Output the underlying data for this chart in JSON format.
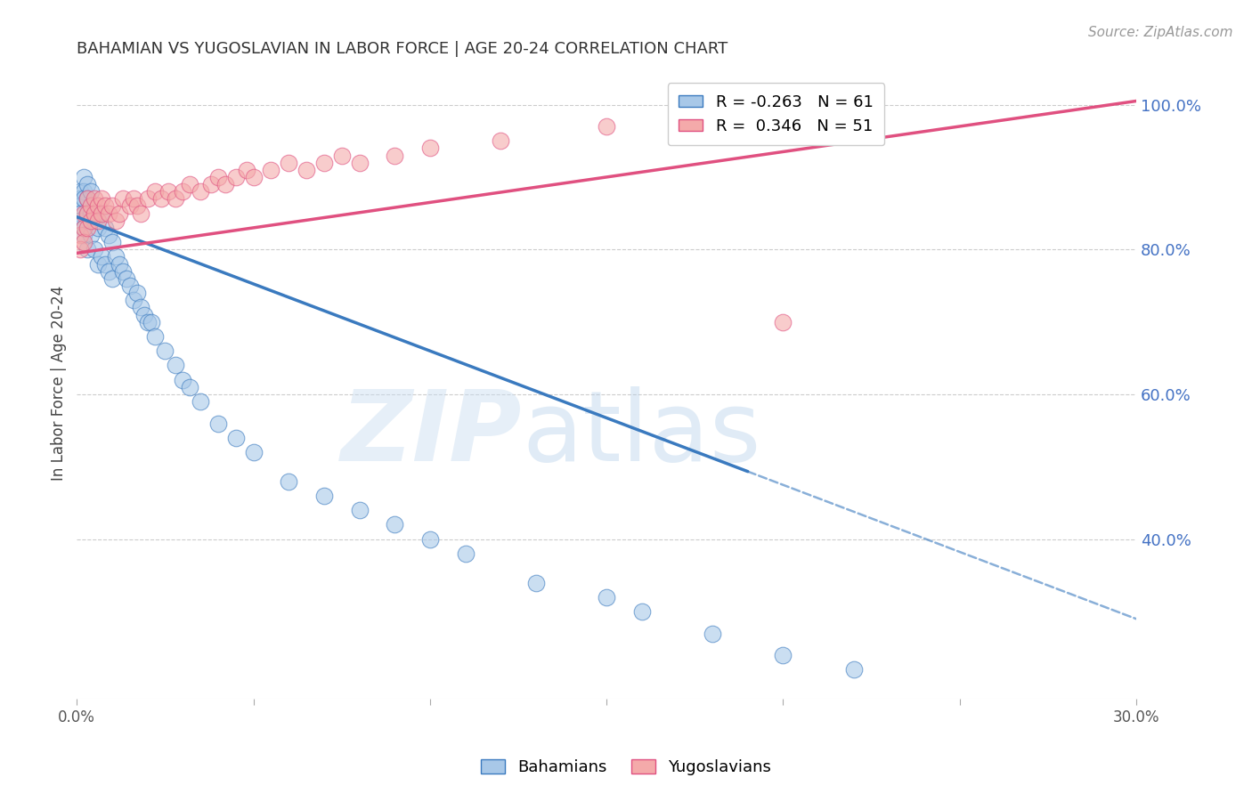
{
  "title": "BAHAMIAN VS YUGOSLAVIAN IN LABOR FORCE | AGE 20-24 CORRELATION CHART",
  "source": "Source: ZipAtlas.com",
  "ylabel": "In Labor Force | Age 20-24",
  "xlim": [
    0.0,
    0.3
  ],
  "ylim": [
    0.18,
    1.05
  ],
  "xticks": [
    0.0,
    0.05,
    0.1,
    0.15,
    0.2,
    0.25,
    0.3
  ],
  "xticklabels": [
    "0.0%",
    "",
    "",
    "",
    "",
    "",
    "30.0%"
  ],
  "yticks_right": [
    0.4,
    0.6,
    0.8,
    1.0
  ],
  "ytick_right_labels": [
    "40.0%",
    "60.0%",
    "80.0%",
    "100.0%"
  ],
  "legend_r_blue": "R = -0.263",
  "legend_n_blue": "N = 61",
  "legend_r_pink": "R =  0.346",
  "legend_n_pink": "N = 51",
  "blue_color": "#a8c8e8",
  "pink_color": "#f4aaaa",
  "trend_blue_color": "#3a7abf",
  "trend_pink_color": "#e05080",
  "blue_line_solid_end": 0.19,
  "blue_trend_x0": 0.0,
  "blue_trend_y0": 0.845,
  "blue_trend_x1": 0.3,
  "blue_trend_y1": 0.29,
  "pink_trend_x0": 0.0,
  "pink_trend_y0": 0.795,
  "pink_trend_x1": 0.3,
  "pink_trend_y1": 1.005,
  "bahamians_x": [
    0.001,
    0.001,
    0.001,
    0.001,
    0.001,
    0.002,
    0.002,
    0.002,
    0.002,
    0.002,
    0.003,
    0.003,
    0.003,
    0.003,
    0.004,
    0.004,
    0.004,
    0.005,
    0.005,
    0.006,
    0.006,
    0.007,
    0.007,
    0.008,
    0.008,
    0.009,
    0.009,
    0.01,
    0.01,
    0.011,
    0.012,
    0.013,
    0.014,
    0.015,
    0.016,
    0.017,
    0.018,
    0.019,
    0.02,
    0.021,
    0.022,
    0.025,
    0.028,
    0.03,
    0.032,
    0.035,
    0.04,
    0.045,
    0.05,
    0.06,
    0.07,
    0.08,
    0.09,
    0.1,
    0.11,
    0.13,
    0.15,
    0.16,
    0.18,
    0.2,
    0.22
  ],
  "bahamians_y": [
    0.88,
    0.87,
    0.86,
    0.85,
    0.84,
    0.9,
    0.88,
    0.87,
    0.83,
    0.82,
    0.89,
    0.87,
    0.85,
    0.8,
    0.88,
    0.85,
    0.82,
    0.84,
    0.8,
    0.83,
    0.78,
    0.85,
    0.79,
    0.83,
    0.78,
    0.82,
    0.77,
    0.81,
    0.76,
    0.79,
    0.78,
    0.77,
    0.76,
    0.75,
    0.73,
    0.74,
    0.72,
    0.71,
    0.7,
    0.7,
    0.68,
    0.66,
    0.64,
    0.62,
    0.61,
    0.59,
    0.56,
    0.54,
    0.52,
    0.48,
    0.46,
    0.44,
    0.42,
    0.4,
    0.38,
    0.34,
    0.32,
    0.3,
    0.27,
    0.24,
    0.22
  ],
  "yugoslavians_x": [
    0.001,
    0.001,
    0.002,
    0.002,
    0.002,
    0.003,
    0.003,
    0.003,
    0.004,
    0.004,
    0.005,
    0.005,
    0.006,
    0.006,
    0.007,
    0.007,
    0.008,
    0.009,
    0.01,
    0.011,
    0.012,
    0.013,
    0.015,
    0.016,
    0.017,
    0.018,
    0.02,
    0.022,
    0.024,
    0.026,
    0.028,
    0.03,
    0.032,
    0.035,
    0.038,
    0.04,
    0.042,
    0.045,
    0.048,
    0.05,
    0.055,
    0.06,
    0.065,
    0.07,
    0.075,
    0.08,
    0.09,
    0.1,
    0.12,
    0.15,
    0.2
  ],
  "yugoslavians_y": [
    0.82,
    0.8,
    0.85,
    0.83,
    0.81,
    0.87,
    0.85,
    0.83,
    0.86,
    0.84,
    0.87,
    0.85,
    0.86,
    0.84,
    0.87,
    0.85,
    0.86,
    0.85,
    0.86,
    0.84,
    0.85,
    0.87,
    0.86,
    0.87,
    0.86,
    0.85,
    0.87,
    0.88,
    0.87,
    0.88,
    0.87,
    0.88,
    0.89,
    0.88,
    0.89,
    0.9,
    0.89,
    0.9,
    0.91,
    0.9,
    0.91,
    0.92,
    0.91,
    0.92,
    0.93,
    0.92,
    0.93,
    0.94,
    0.95,
    0.97,
    0.7
  ]
}
